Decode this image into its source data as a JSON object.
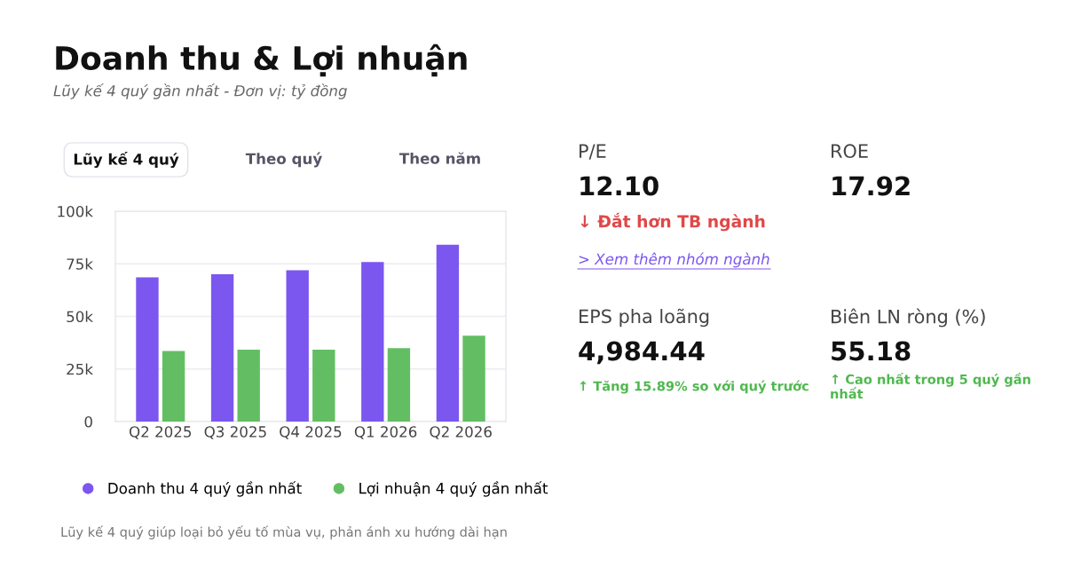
{
  "chart_data": [
    {
      "type": "bar",
      "title": "Doanh thu & Lợi nhuận",
      "subtitle": "Lũy kế 4 quý gần nhất - Đơn vị: tỷ đồng",
      "categories": [
        "Q2 2025",
        "Q3 2025",
        "Q4 2025",
        "Q1 2026",
        "Q2 2026"
      ],
      "series": [
        {
          "name": "Doanh thu 4 quý gần nhất",
          "color": "#7b57f0",
          "values": [
            68.6,
            70.0,
            71.9,
            75.8,
            84.1
          ]
        },
        {
          "name": "Lợi nhuận 4 quý gần nhất",
          "color": "#63be63",
          "values": [
            33.5,
            34.2,
            34.2,
            34.9,
            40.8
          ]
        }
      ],
      "ylim": [
        0,
        100
      ],
      "yticks": [
        {
          "value": 0,
          "label": "0"
        },
        {
          "value": 25,
          "label": "25k"
        },
        {
          "value": 50,
          "label": "50k"
        },
        {
          "value": 75,
          "label": "75k"
        },
        {
          "value": 100,
          "label": "100k"
        }
      ],
      "grid": "y",
      "legend": "bottom",
      "annotations": [
        "Lũy kế 4 quý",
        "Theo quý",
        "Theo năm",
        "Lũy kế 4 quý giúp loại bỏ yếu tố mùa vụ, phản ánh xu hướng dài hạn"
      ]
    },
    {
      "type": "other",
      "annotations": [
        "P/E",
        "12.10",
        "↓ Đắt hơn TB ngành",
        "> Xem thêm nhóm ngành",
        "ROE",
        "17.92",
        "EPS pha loãng",
        "4,984.44",
        "↑ Tăng 15.89% so với quý trước",
        "Biên LN ròng (%)",
        "55.18",
        "↑ Cao nhất trong 5 quý gần nhất"
      ]
    }
  ]
}
